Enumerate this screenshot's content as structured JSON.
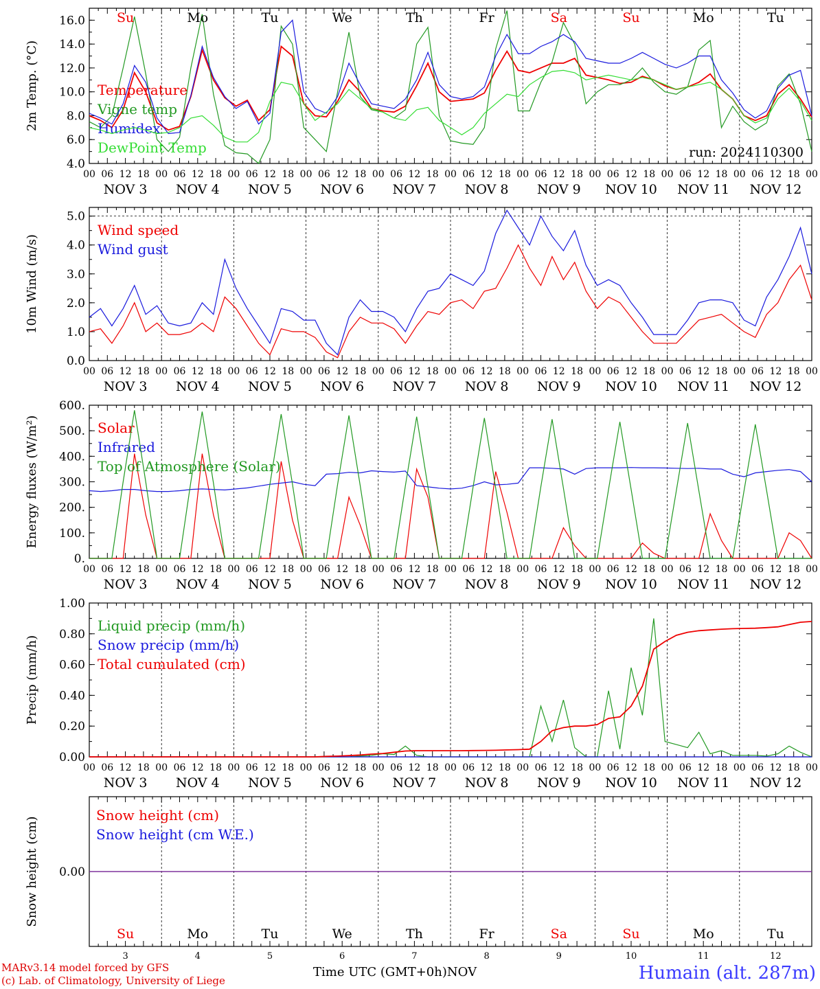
{
  "run_label": "run: 2024110300",
  "footer": {
    "model": "MARv3.14 model forced by GFS",
    "lab": "(c) Lab. of Climatology, University of Liege",
    "xaxis": "Time UTC (GMT+0h)",
    "month": "NOV",
    "station": "Humain (alt. 287m)"
  },
  "colors": {
    "red": "#ee0000",
    "green": "#229922",
    "blue": "#1a1add",
    "light_green": "#33dd33",
    "purple": "#7a2a99"
  },
  "days": {
    "top_labels": [
      "Su",
      "Mo",
      "Tu",
      "We",
      "Th",
      "Fr",
      "Sa",
      "Su",
      "Mo",
      "Tu"
    ],
    "weekend": [
      true,
      false,
      false,
      false,
      false,
      false,
      true,
      true,
      false,
      false
    ],
    "date_labels": [
      "NOV  3",
      "NOV  4",
      "NOV  5",
      "NOV  6",
      "NOV  7",
      "NOV  8",
      "NOV  9",
      "NOV 10",
      "NOV 11",
      "NOV 12"
    ],
    "day_numbers": [
      "3",
      "4",
      "5",
      "6",
      "7",
      "8",
      "9",
      "10",
      "11",
      "12"
    ],
    "hour_ticks": [
      "00",
      "06",
      "12",
      "18"
    ],
    "last_tick": "00"
  },
  "chart_data": [
    {
      "type": "line",
      "ylabel": "2m Temp. (°C)",
      "ylim": [
        4,
        17
      ],
      "yticks": [
        "4.0",
        "6.0",
        "8.0",
        "10.0",
        "12.0",
        "14.0",
        "16.0"
      ],
      "x_hours_step": 6,
      "series": [
        {
          "name": "Temperature",
          "color": "#ee0000",
          "values": [
            8.0,
            7.6,
            7.0,
            8.5,
            11.6,
            10.0,
            7.4,
            6.8,
            7.1,
            9.6,
            13.5,
            11.0,
            9.5,
            8.8,
            9.3,
            7.6,
            8.5,
            13.8,
            13.0,
            9.0,
            8.0,
            7.9,
            9.2,
            11.0,
            10.0,
            8.6,
            8.4,
            8.3,
            8.8,
            10.5,
            12.4,
            10.0,
            9.2,
            9.3,
            9.4,
            9.9,
            11.8,
            13.4,
            11.8,
            11.6,
            12.0,
            12.4,
            12.4,
            12.8,
            11.4,
            11.2,
            11.0,
            10.7,
            10.8,
            11.3,
            11.0,
            10.5,
            10.2,
            10.4,
            10.8,
            11.5,
            10.2,
            9.4,
            8.0,
            7.6,
            8.0,
            9.8,
            10.6,
            9.4,
            7.9
          ]
        },
        {
          "name": "Vigne temp",
          "color": "#229922",
          "values": [
            7.5,
            7.0,
            8.0,
            12.0,
            16.3,
            11.5,
            6.0,
            5.0,
            6.2,
            12.0,
            16.5,
            9.8,
            5.5,
            4.9,
            4.8,
            4.0,
            6.0,
            15.5,
            14.0,
            7.0,
            6.0,
            5.0,
            10.0,
            15.0,
            9.6,
            8.5,
            8.3,
            7.8,
            8.5,
            14.0,
            15.4,
            8.0,
            5.9,
            5.7,
            5.6,
            7.0,
            13.6,
            16.8,
            8.4,
            8.4,
            10.8,
            12.5,
            15.8,
            14.0,
            9.0,
            10.0,
            10.6,
            10.6,
            11.0,
            12.0,
            10.8,
            10.0,
            9.8,
            10.4,
            13.5,
            14.3,
            7.0,
            8.8,
            7.5,
            6.8,
            7.4,
            10.5,
            11.5,
            9.0,
            5.0
          ]
        },
        {
          "name": "Humidex",
          "color": "#1a1add",
          "values": [
            8.2,
            7.8,
            7.3,
            9.0,
            12.2,
            10.8,
            7.8,
            6.5,
            6.6,
            9.7,
            13.8,
            11.2,
            9.6,
            8.6,
            9.2,
            7.3,
            8.2,
            15.0,
            16.0,
            10.0,
            8.6,
            8.2,
            9.6,
            12.4,
            10.6,
            9.0,
            8.8,
            8.6,
            9.4,
            11.0,
            13.3,
            10.6,
            9.6,
            9.4,
            9.6,
            10.4,
            13.0,
            14.8,
            13.2,
            13.2,
            13.8,
            14.2,
            14.8,
            14.2,
            12.8,
            12.6,
            12.4,
            12.4,
            12.8,
            13.3,
            12.8,
            12.3,
            12.0,
            12.4,
            13.0,
            13.0,
            11.0,
            9.9,
            8.5,
            7.8,
            8.4,
            10.3,
            11.4,
            11.8,
            8.0
          ]
        },
        {
          "name": "DewPoint Temp",
          "color": "#33dd33",
          "values": [
            7.0,
            6.8,
            6.5,
            6.8,
            7.0,
            6.8,
            6.5,
            6.6,
            7.0,
            7.8,
            8.0,
            7.2,
            6.2,
            5.8,
            5.8,
            6.6,
            9.2,
            10.8,
            10.6,
            9.0,
            7.6,
            8.3,
            9.0,
            10.2,
            9.4,
            8.6,
            8.3,
            7.8,
            7.6,
            8.5,
            8.7,
            7.6,
            7.0,
            6.4,
            7.0,
            8.2,
            9.0,
            9.8,
            9.6,
            10.6,
            11.2,
            11.7,
            11.8,
            11.6,
            11.0,
            11.2,
            11.4,
            11.2,
            11.0,
            11.2,
            11.0,
            10.6,
            10.2,
            10.4,
            10.6,
            10.8,
            10.2,
            9.4,
            8.0,
            7.4,
            7.8,
            9.4,
            10.3,
            9.2,
            7.6
          ]
        }
      ]
    },
    {
      "type": "line",
      "ylabel": "10m Wind (m/s)",
      "ylim": [
        0,
        5.3
      ],
      "yticks": [
        "0.0",
        "1.0",
        "2.0",
        "3.0",
        "4.0",
        "5.0"
      ],
      "dashed_ref": 5.0,
      "x_hours_step": 6,
      "series": [
        {
          "name": "Wind speed",
          "color": "#ee0000",
          "values": [
            1.0,
            1.1,
            0.6,
            1.2,
            2.0,
            1.0,
            1.3,
            0.9,
            0.9,
            1.0,
            1.3,
            1.0,
            2.2,
            1.8,
            1.2,
            0.6,
            0.2,
            1.1,
            1.0,
            1.0,
            0.8,
            0.3,
            0.1,
            1.0,
            1.5,
            1.3,
            1.3,
            1.1,
            0.6,
            1.2,
            1.7,
            1.6,
            2.0,
            2.1,
            1.8,
            2.4,
            2.5,
            3.2,
            4.0,
            3.2,
            2.6,
            3.6,
            2.8,
            3.4,
            2.4,
            1.8,
            2.2,
            2.0,
            1.5,
            1.0,
            0.6,
            0.6,
            0.6,
            1.0,
            1.4,
            1.5,
            1.6,
            1.3,
            1.0,
            0.8,
            1.6,
            2.0,
            2.8,
            3.3,
            2.1
          ]
        },
        {
          "name": "Wind gust",
          "color": "#1a1add",
          "values": [
            1.5,
            1.8,
            1.2,
            1.8,
            2.6,
            1.6,
            1.9,
            1.3,
            1.2,
            1.3,
            2.0,
            1.6,
            3.5,
            2.5,
            1.8,
            1.2,
            0.6,
            1.8,
            1.7,
            1.4,
            1.4,
            0.6,
            0.2,
            1.5,
            2.1,
            1.7,
            1.7,
            1.5,
            1.0,
            1.8,
            2.4,
            2.5,
            3.0,
            2.8,
            2.6,
            3.1,
            4.4,
            5.2,
            4.6,
            4.0,
            5.0,
            4.3,
            3.8,
            4.5,
            3.3,
            2.6,
            2.8,
            2.6,
            2.0,
            1.5,
            0.9,
            0.9,
            0.9,
            1.4,
            2.0,
            2.1,
            2.1,
            2.0,
            1.4,
            1.2,
            2.2,
            2.8,
            3.6,
            4.6,
            3.0
          ]
        }
      ]
    },
    {
      "type": "line",
      "ylabel": "Energy fluxes (W/m²)",
      "ylim": [
        0,
        600
      ],
      "yticks": [
        "0.",
        "100.",
        "200.",
        "300.",
        "400.",
        "500.",
        "600."
      ],
      "x_hours_step": 6,
      "series": [
        {
          "name": "Solar",
          "color": "#ee0000",
          "values": [
            0,
            0,
            0,
            0,
            410,
            170,
            0,
            0,
            0,
            0,
            410,
            170,
            0,
            0,
            0,
            0,
            0,
            380,
            150,
            0,
            0,
            0,
            0,
            240,
            130,
            0,
            0,
            0,
            0,
            350,
            240,
            0,
            0,
            0,
            0,
            0,
            340,
            180,
            0,
            0,
            0,
            0,
            120,
            50,
            0,
            0,
            0,
            0,
            0,
            60,
            20,
            0,
            0,
            0,
            0,
            175,
            70,
            0,
            0,
            0,
            0,
            0,
            100,
            70,
            0
          ]
        },
        {
          "name": "Infrared",
          "color": "#1a1add",
          "values": [
            265,
            262,
            265,
            270,
            270,
            265,
            262,
            262,
            265,
            270,
            272,
            270,
            268,
            272,
            276,
            283,
            290,
            295,
            300,
            290,
            285,
            330,
            332,
            337,
            335,
            343,
            340,
            338,
            342,
            285,
            280,
            275,
            272,
            275,
            285,
            300,
            288,
            290,
            295,
            355,
            355,
            353,
            350,
            330,
            352,
            355,
            355,
            355,
            356,
            355,
            355,
            354,
            353,
            352,
            353,
            350,
            350,
            330,
            320,
            335,
            340,
            345,
            348,
            340,
            300
          ]
        },
        {
          "name": "Top of Atmosphere (Solar)",
          "color": "#229922",
          "values": [
            0,
            0,
            0,
            300,
            580,
            300,
            0,
            0,
            0,
            300,
            575,
            295,
            0,
            0,
            0,
            0,
            290,
            565,
            290,
            0,
            0,
            0,
            290,
            560,
            285,
            0,
            0,
            0,
            285,
            555,
            280,
            0,
            0,
            0,
            280,
            550,
            275,
            0,
            0,
            0,
            280,
            545,
            275,
            0,
            0,
            0,
            270,
            535,
            270,
            0,
            0,
            0,
            265,
            530,
            265,
            0,
            0,
            0,
            265,
            525,
            265,
            0,
            0,
            0,
            0
          ]
        }
      ]
    },
    {
      "type": "line",
      "ylabel": "Precip (mm/h)",
      "ylim": [
        0,
        1.0
      ],
      "yticks": [
        "0.00",
        "0.20",
        "0.40",
        "0.60",
        "0.80",
        "1.00"
      ],
      "x_hours_step": 6,
      "series": [
        {
          "name": "Liquid precip (mm/h)",
          "color": "#229922",
          "values": [
            0,
            0,
            0,
            0,
            0,
            0,
            0,
            0,
            0,
            0,
            0,
            0,
            0,
            0,
            0,
            0,
            0,
            0,
            0,
            0,
            0,
            0,
            0,
            0,
            0.005,
            0.01,
            0.02,
            0.015,
            0.07,
            0.01,
            0,
            0,
            0,
            0,
            0,
            0,
            0,
            0,
            0,
            0,
            0.33,
            0.1,
            0.37,
            0.06,
            0,
            0,
            0.43,
            0.05,
            0.58,
            0.27,
            0.9,
            0.1,
            0.08,
            0.06,
            0.16,
            0.02,
            0.04,
            0.01,
            0.01,
            0.01,
            0.005,
            0.02,
            0.07,
            0.03,
            0
          ]
        },
        {
          "name": "Snow precip (mm/h)",
          "color": "#1a1add",
          "values": [
            0,
            0,
            0,
            0,
            0,
            0,
            0,
            0,
            0,
            0,
            0,
            0,
            0,
            0,
            0,
            0,
            0,
            0,
            0,
            0,
            0,
            0,
            0,
            0,
            0,
            0,
            0,
            0,
            0,
            0,
            0,
            0,
            0,
            0,
            0,
            0,
            0,
            0,
            0,
            0,
            0,
            0,
            0,
            0,
            0,
            0,
            0,
            0,
            0,
            0,
            0,
            0,
            0,
            0,
            0,
            0,
            0,
            0,
            0,
            0,
            0,
            0,
            0,
            0,
            0
          ]
        },
        {
          "name": "Total cumulated (cm)",
          "color": "#ee0000",
          "values": [
            0,
            0,
            0,
            0,
            0,
            0,
            0,
            0,
            0,
            0,
            0,
            0,
            0,
            0,
            0,
            0,
            0,
            0,
            0,
            0,
            0,
            0.003,
            0.005,
            0.008,
            0.012,
            0.018,
            0.022,
            0.03,
            0.038,
            0.04,
            0.04,
            0.04,
            0.04,
            0.04,
            0.041,
            0.042,
            0.043,
            0.045,
            0.047,
            0.05,
            0.1,
            0.17,
            0.19,
            0.2,
            0.2,
            0.21,
            0.25,
            0.26,
            0.33,
            0.46,
            0.7,
            0.75,
            0.79,
            0.81,
            0.82,
            0.825,
            0.83,
            0.833,
            0.835,
            0.836,
            0.84,
            0.845,
            0.86,
            0.875,
            0.88
          ]
        }
      ]
    },
    {
      "type": "line",
      "ylabel": "Snow height (cm)",
      "ylim": [
        -1,
        1
      ],
      "yticks": [
        "0.00"
      ],
      "x_hours_step": 6,
      "series": [
        {
          "name": "Snow height (cm)",
          "color": "#ee0000",
          "values": [
            0,
            0
          ]
        },
        {
          "name": "Snow height (cm W.E.)",
          "color": "#1a1add",
          "values": [
            0,
            0
          ]
        }
      ]
    }
  ]
}
